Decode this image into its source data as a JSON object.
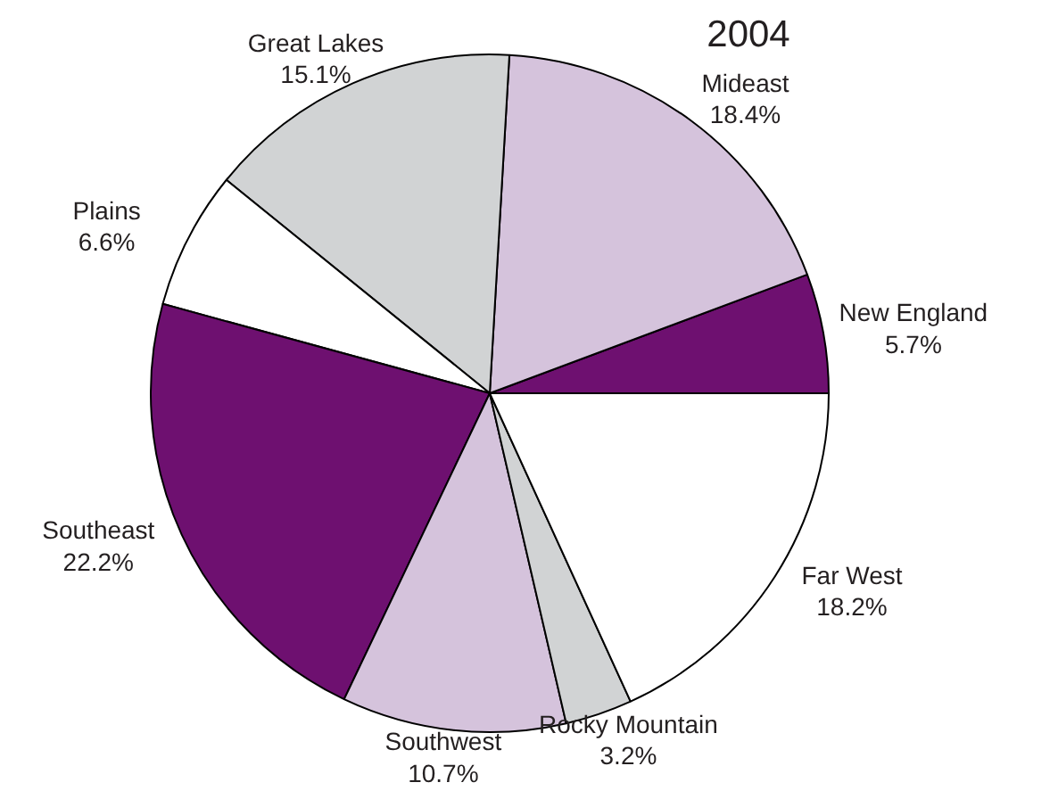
{
  "chart_data": {
    "type": "pie",
    "title": "2004",
    "categories": [
      "New England",
      "Mideast",
      "Great Lakes",
      "Plains",
      "Southeast",
      "Southwest",
      "Rocky Mountain",
      "Far West"
    ],
    "values": [
      5.7,
      18.4,
      15.1,
      6.6,
      22.2,
      10.7,
      3.2,
      18.2
    ],
    "value_labels": [
      "5.7%",
      "18.4%",
      "15.1%",
      "6.6%",
      "22.2%",
      "10.7%",
      "3.2%",
      "18.2%"
    ],
    "colors": [
      "#6e1070",
      "#d5c3dc",
      "#d1d3d4",
      "#ffffff",
      "#6e1070",
      "#d5c3dc",
      "#d1d3d4",
      "#ffffff"
    ]
  }
}
